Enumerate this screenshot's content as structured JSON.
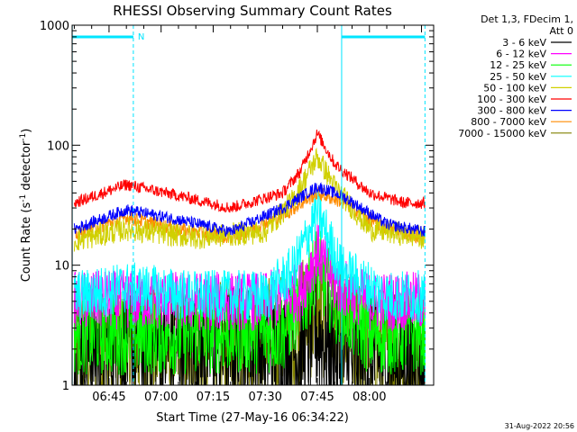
{
  "chart_data": {
    "type": "line",
    "title": "RHESSI Observing Summary Count Rates",
    "xlabel": "Start Time (27-May-16 06:34:22)",
    "ylabel_main": "Count Rate (s",
    "ylabel_sup1": "-1",
    "ylabel_mid": " detector",
    "ylabel_sup2": "-1",
    "ylabel_end": ")",
    "yscale": "log",
    "ylim": [
      1,
      1000
    ],
    "xlim_min": [
      34.37,
      138.5
    ],
    "x_ticks": [
      {
        "min": 45,
        "label": "06:45"
      },
      {
        "min": 60,
        "label": "07:00"
      },
      {
        "min": 75,
        "label": "07:15"
      },
      {
        "min": 90,
        "label": "07:30"
      },
      {
        "min": 105,
        "label": "07:45"
      },
      {
        "min": 120,
        "label": "08:00"
      }
    ],
    "y_ticks": [
      {
        "value": 1,
        "label": "1"
      },
      {
        "value": 10,
        "label": "10"
      },
      {
        "value": 100,
        "label": "100"
      },
      {
        "value": 1000,
        "label": "1000"
      }
    ],
    "annotations": {
      "night_marker": "N",
      "dashed_lines_min": [
        52,
        136
      ],
      "solid_cyan_lines_min": [
        34.4,
        112
      ],
      "cyan_bars": [
        [
          34.4,
          52
        ],
        [
          112,
          136
        ]
      ]
    },
    "legend_header": [
      "Det 1,3, FDecim 1,",
      "Att 0"
    ],
    "legend_position": "right",
    "series": [
      {
        "name": "3 - 6 keV",
        "color": "#000000",
        "points": [
          [
            35,
            2
          ],
          [
            50,
            2
          ],
          [
            80,
            2
          ],
          [
            100,
            2
          ],
          [
            105,
            2.8
          ],
          [
            112,
            1.5
          ],
          [
            130,
            1.7
          ],
          [
            136,
            1.5
          ]
        ]
      },
      {
        "name": "6 - 12 keV",
        "color": "#ff00ff",
        "points": [
          [
            35,
            5
          ],
          [
            50,
            5.2
          ],
          [
            70,
            5
          ],
          [
            90,
            5
          ],
          [
            100,
            6
          ],
          [
            105,
            13
          ],
          [
            110,
            7
          ],
          [
            120,
            5
          ],
          [
            136,
            5
          ]
        ]
      },
      {
        "name": "12 - 25 keV",
        "color": "#00ff00",
        "points": [
          [
            35,
            2.7
          ],
          [
            50,
            2.7
          ],
          [
            70,
            2.7
          ],
          [
            95,
            2.8
          ],
          [
            102,
            6
          ],
          [
            105,
            10
          ],
          [
            110,
            5
          ],
          [
            120,
            2.7
          ],
          [
            136,
            2.7
          ]
        ]
      },
      {
        "name": "25 - 50 keV",
        "color": "#00ffff",
        "points": [
          [
            35,
            5.5
          ],
          [
            50,
            6.5
          ],
          [
            70,
            5.5
          ],
          [
            90,
            5.5
          ],
          [
            98,
            9
          ],
          [
            105,
            28
          ],
          [
            112,
            9
          ],
          [
            125,
            5.5
          ],
          [
            136,
            5.5
          ]
        ]
      },
      {
        "name": "50 - 100 keV",
        "color": "#d0d000",
        "points": [
          [
            35,
            16
          ],
          [
            50,
            20
          ],
          [
            70,
            17
          ],
          [
            90,
            19
          ],
          [
            98,
            35
          ],
          [
            105,
            80
          ],
          [
            110,
            45
          ],
          [
            120,
            20
          ],
          [
            136,
            17
          ]
        ]
      },
      {
        "name": "100 - 300 keV",
        "color": "#ff0000",
        "points": [
          [
            35,
            33
          ],
          [
            50,
            47
          ],
          [
            65,
            38
          ],
          [
            80,
            30
          ],
          [
            95,
            40
          ],
          [
            100,
            60
          ],
          [
            105,
            125
          ],
          [
            110,
            70
          ],
          [
            120,
            40
          ],
          [
            130,
            33
          ],
          [
            136,
            33
          ]
        ]
      },
      {
        "name": "300 - 800 keV",
        "color": "#0000ff",
        "points": [
          [
            35,
            20
          ],
          [
            50,
            29
          ],
          [
            65,
            24
          ],
          [
            80,
            19
          ],
          [
            95,
            30
          ],
          [
            105,
            45
          ],
          [
            112,
            38
          ],
          [
            125,
            22
          ],
          [
            136,
            19
          ]
        ]
      },
      {
        "name": "800 - 7000 keV",
        "color": "#ff8c00",
        "points": [
          [
            35,
            18
          ],
          [
            50,
            25
          ],
          [
            65,
            20
          ],
          [
            80,
            17
          ],
          [
            95,
            26
          ],
          [
            105,
            40
          ],
          [
            112,
            34
          ],
          [
            125,
            20
          ],
          [
            136,
            17
          ]
        ]
      },
      {
        "name": "7000 - 15000 keV",
        "color": "#808000",
        "points": [
          [
            35,
            2
          ],
          [
            50,
            2
          ],
          [
            70,
            2
          ],
          [
            95,
            2.5
          ],
          [
            102,
            3.5
          ],
          [
            105,
            4.5
          ],
          [
            110,
            3
          ],
          [
            120,
            2
          ],
          [
            136,
            1.5
          ]
        ]
      }
    ]
  },
  "footer_stamp": "31-Aug-2022 20:56"
}
